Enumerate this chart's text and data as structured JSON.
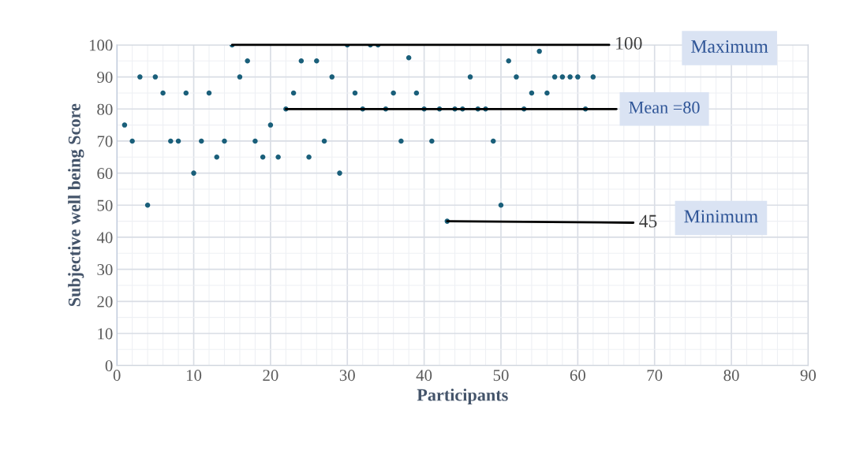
{
  "chart_data": {
    "type": "scatter",
    "xlabel": "Participants",
    "ylabel": "Subjective well being Score",
    "x": [
      1,
      2,
      3,
      4,
      5,
      6,
      7,
      8,
      9,
      10,
      11,
      12,
      13,
      14,
      15,
      16,
      17,
      18,
      19,
      20,
      21,
      22,
      23,
      24,
      25,
      26,
      27,
      28,
      29,
      30,
      31,
      32,
      33,
      34,
      35,
      36,
      37,
      38,
      39,
      40,
      41,
      42,
      43,
      44,
      45,
      46,
      47,
      48,
      49,
      50,
      51,
      52,
      53,
      54,
      55,
      56,
      57,
      58,
      59,
      60,
      61,
      62
    ],
    "series": [
      {
        "color": "#1a5f7a",
        "values": [
          75,
          70,
          90,
          50,
          90,
          85,
          70,
          70,
          85,
          60,
          70,
          85,
          65,
          70,
          100,
          90,
          95,
          70,
          65,
          75,
          65,
          80,
          85,
          95,
          65,
          95,
          70,
          90,
          60,
          100,
          85,
          80,
          100,
          100,
          80,
          85,
          70,
          96,
          85,
          80,
          70,
          80,
          45,
          80,
          80,
          90,
          80,
          80,
          70,
          50,
          95,
          90,
          80,
          85,
          98,
          85,
          90,
          90,
          90,
          90,
          80,
          90
        ]
      }
    ],
    "xlim": [
      0,
      90
    ],
    "xticks": [
      0,
      10,
      20,
      30,
      40,
      50,
      60,
      70,
      80,
      90
    ],
    "ylim": [
      0,
      100
    ],
    "yticks": [
      0,
      10,
      20,
      30,
      40,
      50,
      60,
      70,
      80,
      90,
      100
    ],
    "grid": true,
    "marker": "circle",
    "annotations": [
      {
        "text": "100",
        "x": 15,
        "y": 100
      },
      {
        "text": "Mean =80",
        "x": 22,
        "y": 80
      },
      {
        "text": "45",
        "x": 43,
        "y": 45
      },
      "Maximum",
      "Minimum"
    ]
  }
}
